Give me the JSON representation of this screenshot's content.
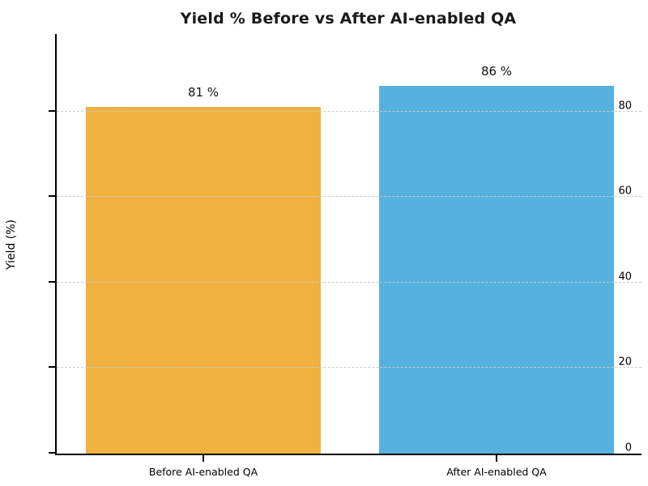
{
  "chart_data": {
    "type": "bar",
    "title": "Yield % Before vs After AI-enabled QA",
    "categories": [
      "Before AI-enabled QA",
      "After AI-enabled QA"
    ],
    "values": [
      81,
      86
    ],
    "bar_labels": [
      "81 %",
      "86 %"
    ],
    "bar_colors": [
      "#F0B13E",
      "#56B1E1"
    ],
    "xlabel": "",
    "ylabel": "Yield (%)",
    "ylim": [
      0,
      98.5
    ],
    "yticks": [
      0,
      20,
      40,
      60,
      80
    ],
    "grid": "horizontal-dashed-over-bars",
    "legend": "none",
    "spines": [
      "left",
      "bottom"
    ]
  },
  "colors": {
    "background": "#ffffff",
    "title_text": "#1a1a1a",
    "axis": "#000000",
    "gridline": "#c9c9c9"
  }
}
